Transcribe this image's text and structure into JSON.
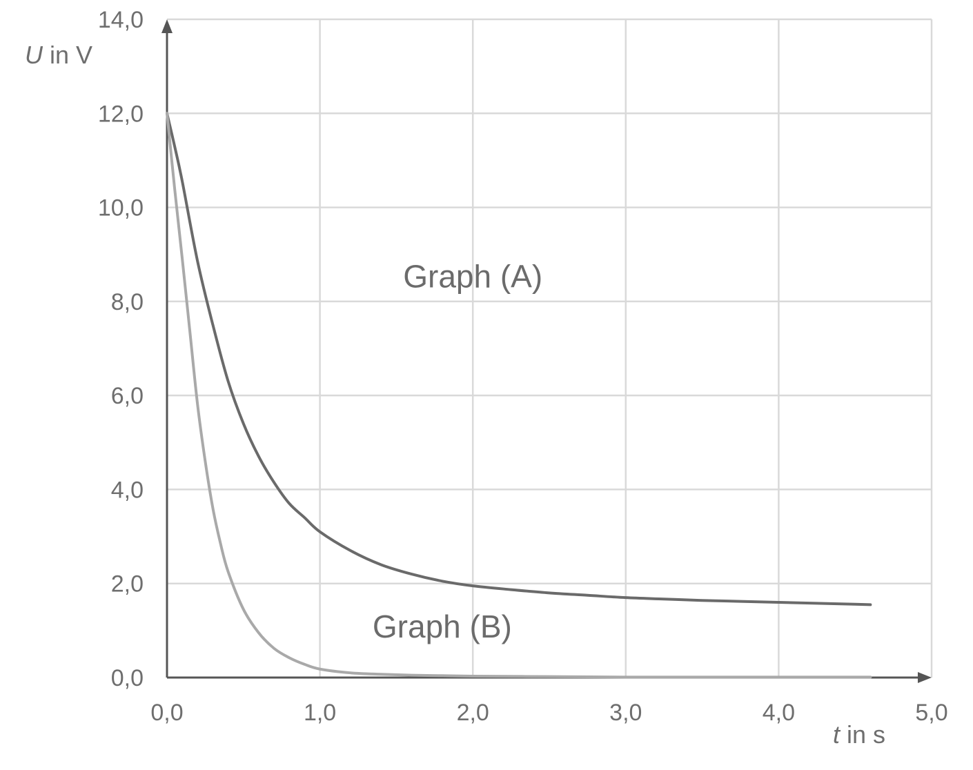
{
  "chart_data": {
    "type": "line",
    "x_axis": {
      "label_var": "t",
      "label_unit": " in s",
      "range": [
        0,
        5
      ],
      "ticks": [
        0,
        1,
        2,
        3,
        4,
        5
      ],
      "tick_labels": [
        "0,0",
        "1,0",
        "2,0",
        "3,0",
        "4,0",
        "5,0"
      ]
    },
    "y_axis": {
      "label_var": "U",
      "label_unit": " in V",
      "range": [
        0,
        14
      ],
      "ticks": [
        0,
        2,
        4,
        6,
        8,
        10,
        12,
        14
      ],
      "tick_labels": [
        "0,0",
        "2,0",
        "4,0",
        "6,0",
        "8,0",
        "10,0",
        "12,0",
        "14,0"
      ]
    },
    "grid": true,
    "series": [
      {
        "name": "Graph (A)",
        "color": "#6a6a6a",
        "x": [
          0.0,
          0.05,
          0.1,
          0.2,
          0.3,
          0.4,
          0.5,
          0.6,
          0.7,
          0.8,
          0.9,
          1.0,
          1.2,
          1.4,
          1.6,
          1.8,
          2.0,
          2.25,
          2.5,
          2.75,
          3.0,
          3.25,
          3.5,
          3.75,
          4.0,
          4.25,
          4.5,
          4.6
        ],
        "y": [
          12.0,
          11.3,
          10.55,
          8.85,
          7.5,
          6.3,
          5.4,
          4.7,
          4.15,
          3.7,
          3.4,
          3.1,
          2.7,
          2.4,
          2.2,
          2.05,
          1.95,
          1.87,
          1.8,
          1.75,
          1.7,
          1.67,
          1.64,
          1.62,
          1.6,
          1.58,
          1.56,
          1.55
        ]
      },
      {
        "name": "Graph (B)",
        "color": "#a9a9a9",
        "x": [
          0.0,
          0.05,
          0.1,
          0.15,
          0.2,
          0.25,
          0.3,
          0.35,
          0.4,
          0.5,
          0.6,
          0.7,
          0.8,
          0.9,
          1.0,
          1.2,
          1.4,
          1.6,
          1.8,
          2.0,
          2.5,
          3.0,
          3.5,
          4.0,
          4.6
        ],
        "y": [
          12.0,
          10.4,
          8.9,
          7.35,
          5.8,
          4.6,
          3.6,
          2.85,
          2.25,
          1.45,
          0.95,
          0.62,
          0.42,
          0.28,
          0.18,
          0.1,
          0.07,
          0.05,
          0.04,
          0.03,
          0.02,
          0.01,
          0.01,
          0.01,
          0.01
        ]
      }
    ],
    "annotations": [
      {
        "text": "Graph (A)",
        "x": 2.0,
        "y": 8.3
      },
      {
        "text": "Graph (B)",
        "x": 1.8,
        "y": 0.85
      }
    ]
  }
}
